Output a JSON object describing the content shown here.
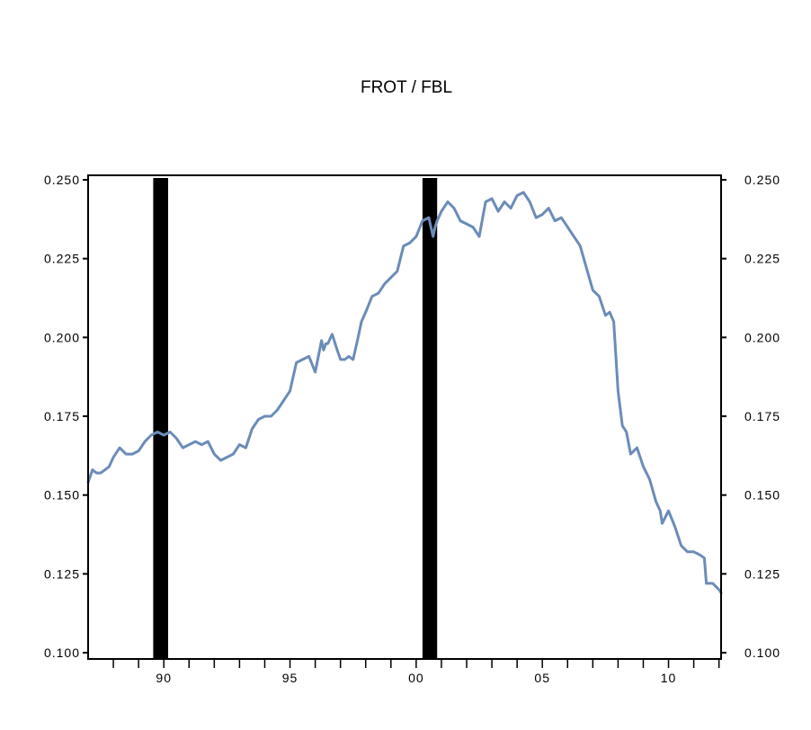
{
  "chart_data": {
    "type": "line",
    "title": "FROT / FBL",
    "xlabel": "",
    "ylabel": "",
    "xlim": [
      1987.0,
      2012.083
    ],
    "ylim": [
      0.1,
      0.25
    ],
    "y_ticks": [
      0.1,
      0.125,
      0.15,
      0.175,
      0.2,
      0.225,
      0.25
    ],
    "y_tick_labels": [
      "0.100",
      "0.125",
      "0.150",
      "0.175",
      "0.200",
      "0.225",
      "0.250"
    ],
    "x_tick_labels": [
      {
        "value": 1990,
        "label": "90"
      },
      {
        "value": 1995,
        "label": "95"
      },
      {
        "value": 2000,
        "label": "00"
      },
      {
        "value": 2005,
        "label": "05"
      },
      {
        "value": 2010,
        "label": "10"
      }
    ],
    "x_minor_tick_years": [
      1988,
      1989,
      1990,
      1991,
      1992,
      1993,
      1994,
      1995,
      1996,
      1997,
      1998,
      1999,
      2000,
      2001,
      2002,
      2003,
      2004,
      2005,
      2006,
      2007,
      2008,
      2009,
      2010,
      2011,
      2012
    ],
    "grid": false,
    "legend": "none",
    "line_color": "#6b8cb8",
    "shade_color": "#000000",
    "shaded_periods": [
      {
        "start": 1989.58,
        "end": 1990.17
      },
      {
        "start": 2000.25,
        "end": 2000.83
      }
    ],
    "series": [
      {
        "x": [
          1987.0,
          1987.17,
          1987.33,
          1987.5,
          1987.67,
          1987.83,
          1988.0,
          1988.25,
          1988.5,
          1988.75,
          1989.0,
          1989.25,
          1989.5,
          1989.75,
          1990.0,
          1990.25,
          1990.5,
          1990.75,
          1991.0,
          1991.25,
          1991.5,
          1991.75,
          1992.0,
          1992.25,
          1992.5,
          1992.75,
          1993.0,
          1993.25,
          1993.5,
          1993.75,
          1994.0,
          1994.25,
          1994.5,
          1994.75,
          1995.0,
          1995.25,
          1995.5,
          1995.75,
          1996.0,
          1996.25,
          1996.33,
          1996.42,
          1996.5,
          1996.67,
          1996.75,
          1996.83,
          1997.0,
          1997.1,
          1997.17,
          1997.33,
          1997.5,
          1997.67,
          1997.83,
          1998.0,
          1998.25,
          1998.5,
          1998.75,
          1999.0,
          1999.25,
          1999.5,
          1999.75,
          2000.0,
          2000.25,
          2000.5,
          2000.67,
          2000.75,
          2000.83,
          2001.0,
          2001.25,
          2001.5,
          2001.75,
          2002.0,
          2002.25,
          2002.5,
          2002.75,
          2003.0,
          2003.25,
          2003.5,
          2003.75,
          2004.0,
          2004.25,
          2004.5,
          2004.75,
          2005.0,
          2005.25,
          2005.5,
          2005.75,
          2006.0,
          2006.25,
          2006.5,
          2006.75,
          2007.0,
          2007.25,
          2007.5,
          2007.67,
          2007.83,
          2008.0,
          2008.17,
          2008.33,
          2008.5,
          2008.75,
          2009.0,
          2009.25,
          2009.5,
          2009.67,
          2009.75,
          2010.0,
          2010.25,
          2010.5,
          2010.75,
          2011.0,
          2011.25,
          2011.42,
          2011.5,
          2011.75,
          2012.0,
          2012.083
        ],
        "y": [
          0.154,
          0.158,
          0.157,
          0.157,
          0.158,
          0.159,
          0.162,
          0.165,
          0.163,
          0.163,
          0.164,
          0.167,
          0.169,
          0.17,
          0.169,
          0.17,
          0.168,
          0.165,
          0.166,
          0.167,
          0.166,
          0.167,
          0.163,
          0.161,
          0.162,
          0.163,
          0.166,
          0.165,
          0.171,
          0.174,
          0.175,
          0.175,
          0.177,
          0.18,
          0.183,
          0.192,
          0.193,
          0.194,
          0.189,
          0.199,
          0.196,
          0.198,
          0.198,
          0.201,
          0.199,
          0.197,
          0.193,
          0.193,
          0.193,
          0.194,
          0.193,
          0.199,
          0.205,
          0.208,
          0.213,
          0.214,
          0.217,
          0.219,
          0.221,
          0.229,
          0.23,
          0.232,
          0.237,
          0.238,
          0.232,
          0.235,
          0.237,
          0.24,
          0.243,
          0.241,
          0.237,
          0.236,
          0.235,
          0.232,
          0.243,
          0.244,
          0.24,
          0.243,
          0.241,
          0.245,
          0.246,
          0.243,
          0.238,
          0.239,
          0.241,
          0.237,
          0.238,
          0.235,
          0.232,
          0.229,
          0.222,
          0.215,
          0.213,
          0.207,
          0.208,
          0.205,
          0.183,
          0.172,
          0.17,
          0.163,
          0.165,
          0.159,
          0.155,
          0.148,
          0.145,
          0.141,
          0.145,
          0.14,
          0.134,
          0.132,
          0.132,
          0.131,
          0.13,
          0.122,
          0.122,
          0.12,
          0.119
        ]
      }
    ]
  }
}
